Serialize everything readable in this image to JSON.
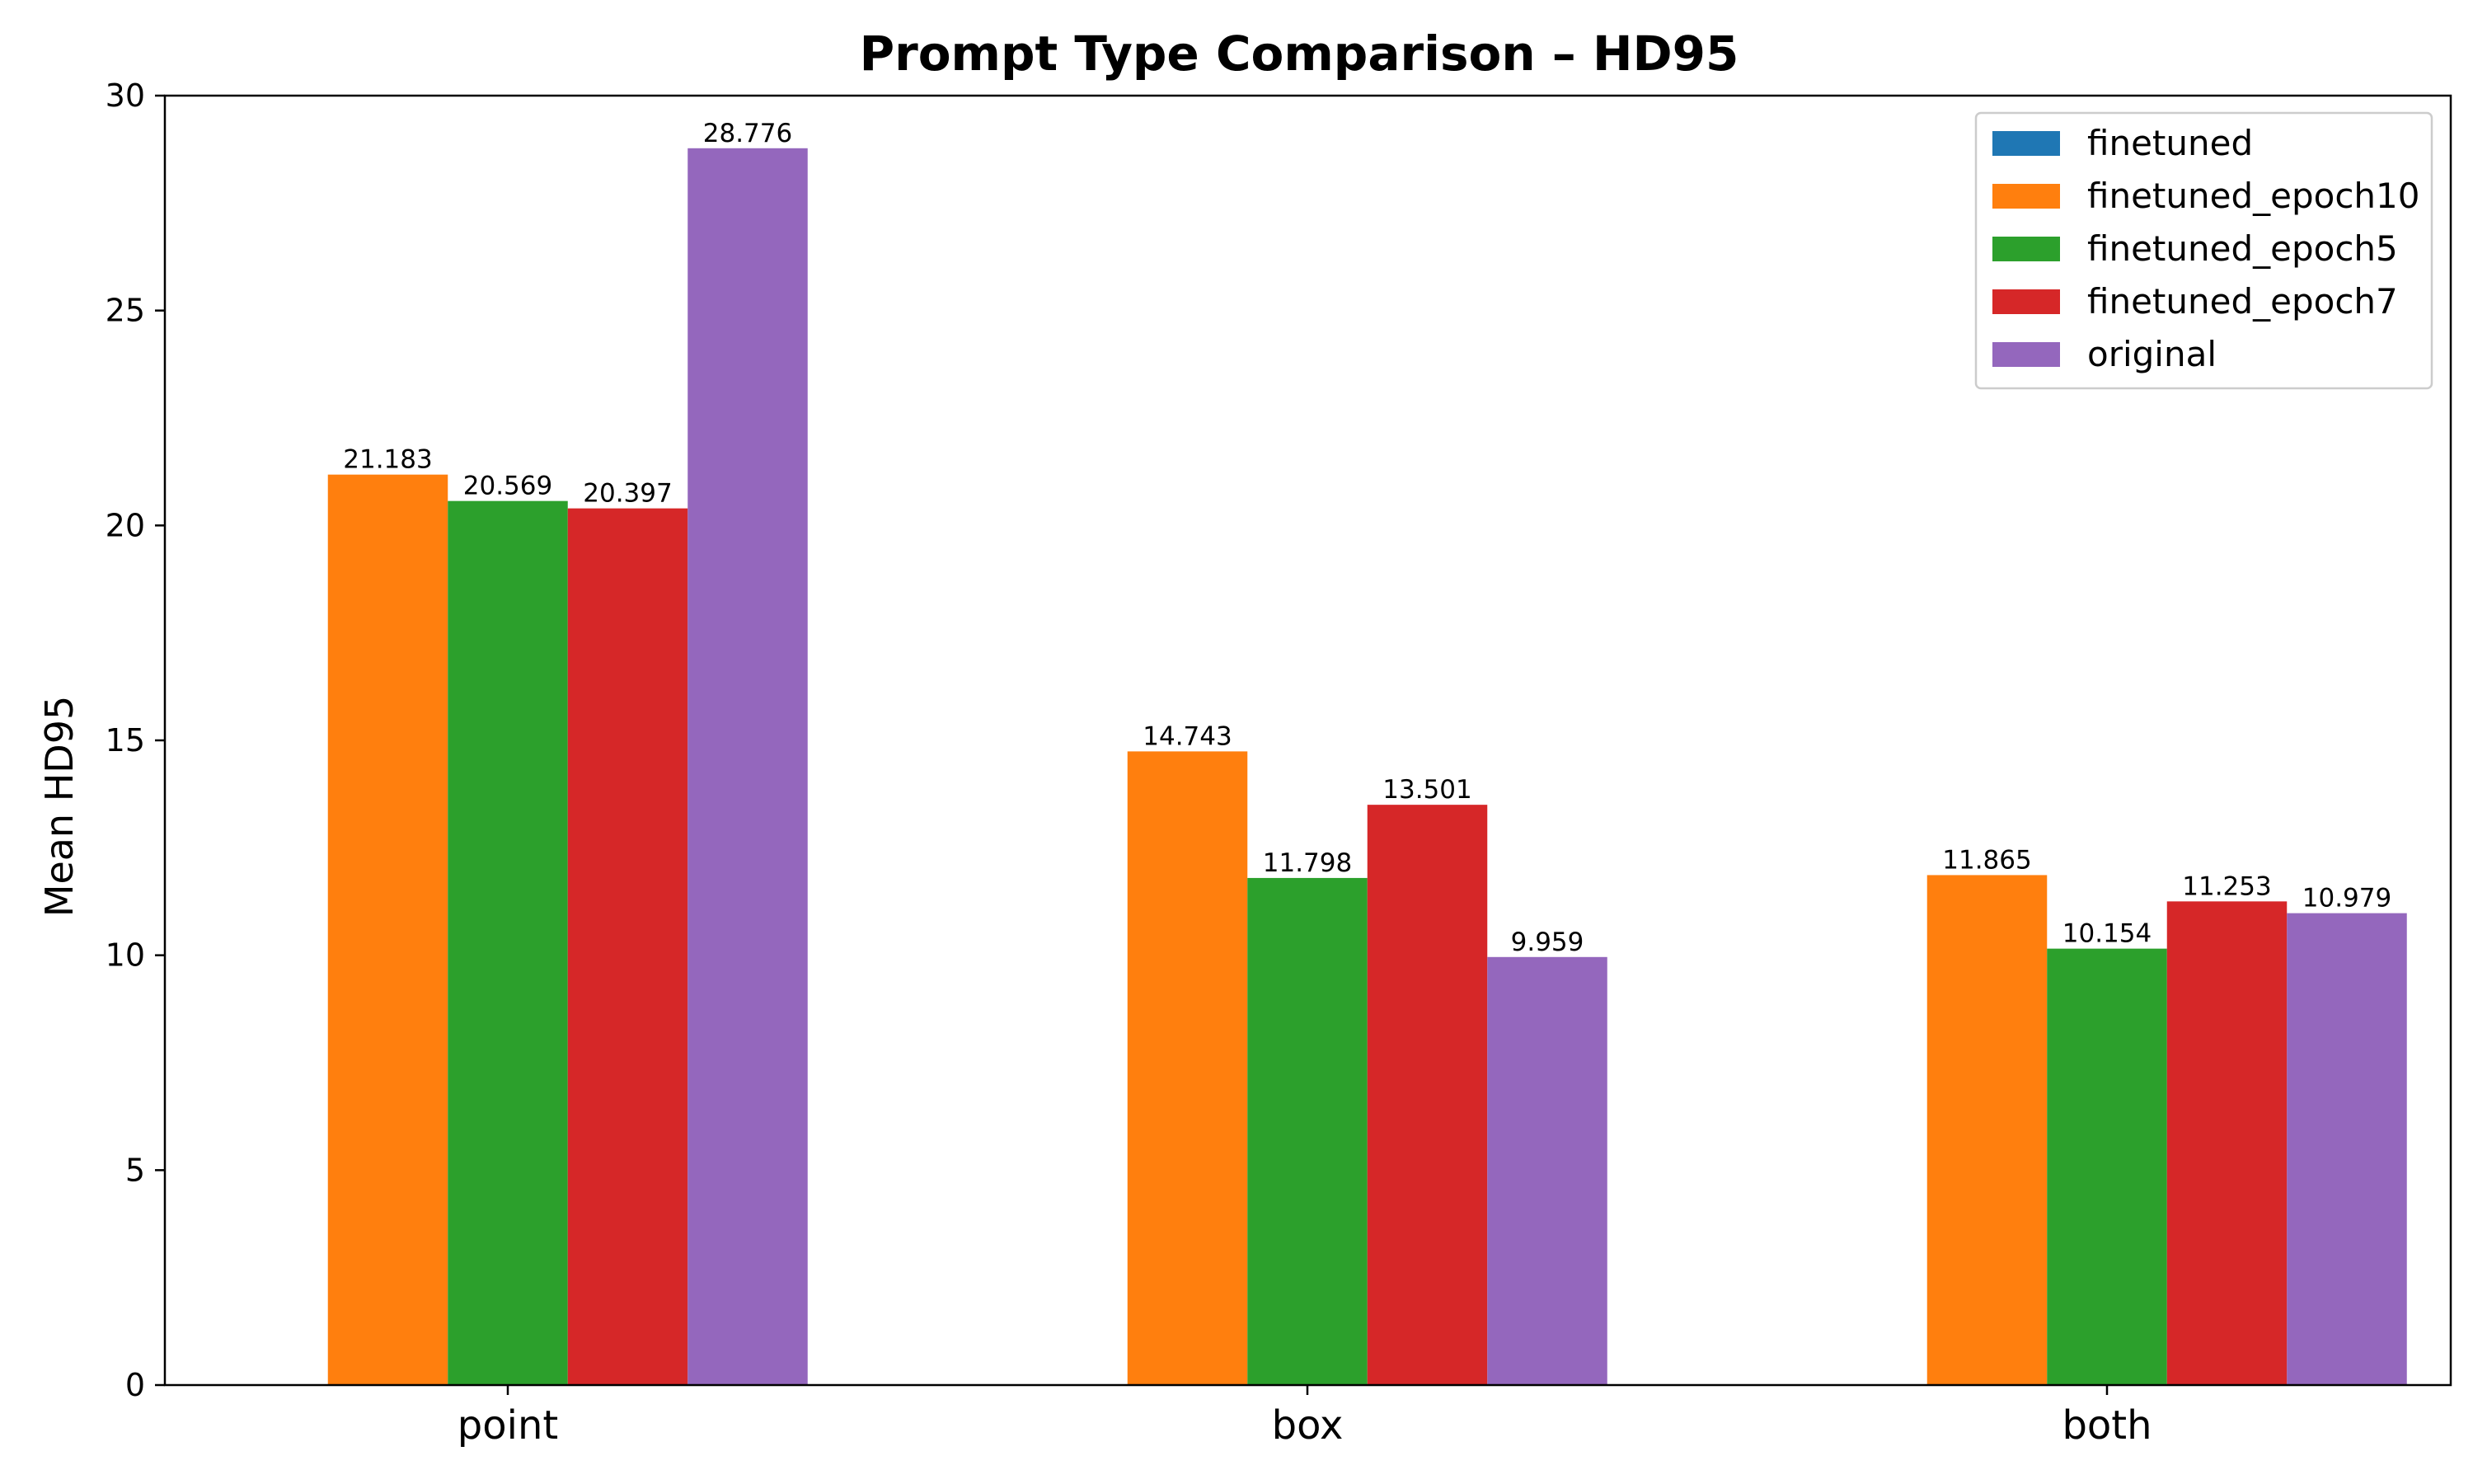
{
  "chart_data": {
    "type": "bar",
    "title": "Prompt Type Comparison – HD95",
    "xlabel": "",
    "ylabel": "Mean HD95",
    "categories": [
      "point",
      "box",
      "both"
    ],
    "ylim": [
      0,
      30
    ],
    "yticks": [
      0,
      5,
      10,
      15,
      20,
      25,
      30
    ],
    "legend_position": "top-right",
    "grid": false,
    "series": [
      {
        "name": "finetuned",
        "color": "#1f77b4",
        "values": [
          null,
          null,
          null
        ]
      },
      {
        "name": "finetuned_epoch10",
        "color": "#ff7f0e",
        "values": [
          21.183,
          14.743,
          11.865
        ]
      },
      {
        "name": "finetuned_epoch5",
        "color": "#2ca02c",
        "values": [
          20.569,
          11.798,
          10.154
        ]
      },
      {
        "name": "finetuned_epoch7",
        "color": "#d62728",
        "values": [
          20.397,
          13.501,
          11.253
        ]
      },
      {
        "name": "original",
        "color": "#9467bd",
        "values": [
          28.776,
          9.959,
          10.979
        ]
      }
    ]
  }
}
